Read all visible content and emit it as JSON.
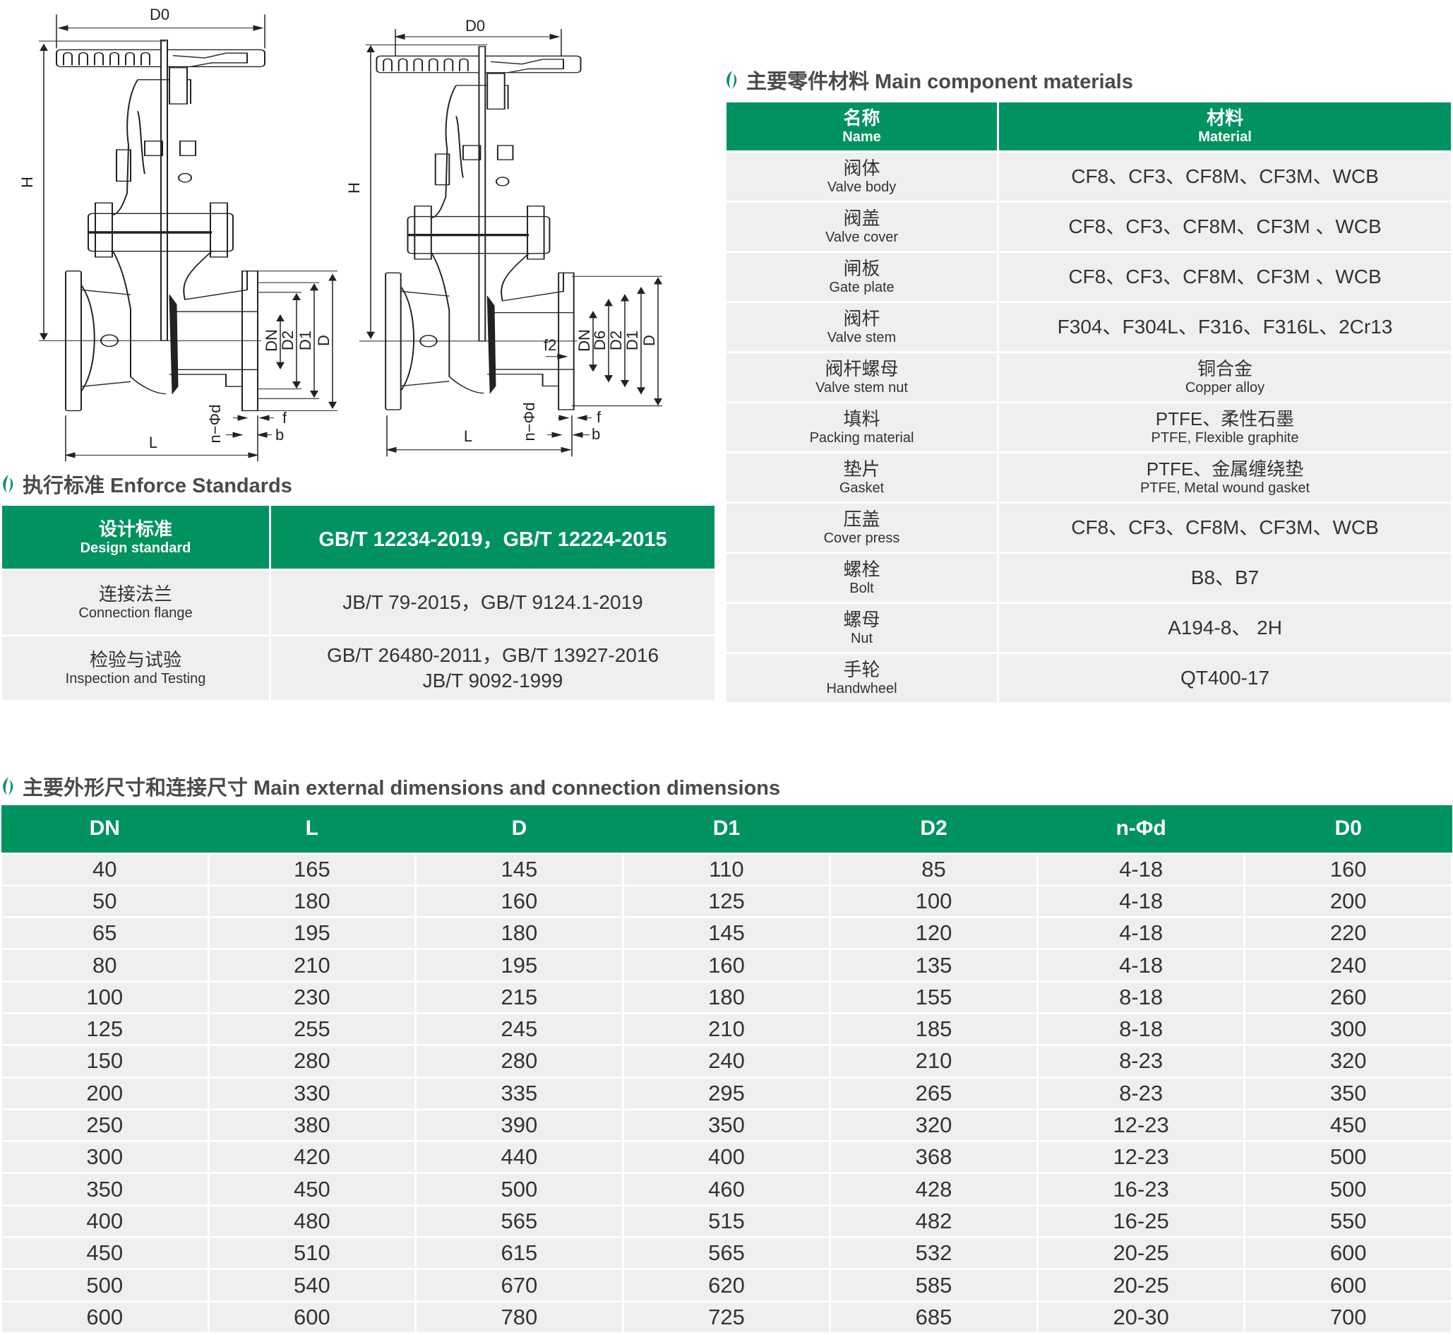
{
  "drawings": {
    "left": {
      "labels": {
        "D0": "D0",
        "H": "H",
        "L": "L",
        "DN": "DN",
        "D2": "D2",
        "D1": "D1",
        "D": "D",
        "f": "f",
        "b": "b",
        "nd": "n−Φd"
      }
    },
    "right": {
      "labels": {
        "D0": "D0",
        "H": "H",
        "L": "L",
        "DN": "DN",
        "D6": "D6",
        "D2": "D2",
        "D1": "D1",
        "D": "D",
        "f": "f",
        "b": "b",
        "f2": "f2",
        "nd": "n−Φd"
      }
    }
  },
  "colors": {
    "accent": "#00935f",
    "row_bg": "#efefef",
    "heading_text": "#4a4a4a"
  },
  "standards": {
    "title": "执行标准 Enforce Standards",
    "header": {
      "cn": "设计标准",
      "en": "Design standard",
      "value": "GB/T 12234-2019，GB/T 12224-2015"
    },
    "rows": [
      {
        "cn": "连接法兰",
        "en": "Connection flange",
        "value": [
          "JB/T 79-2015，GB/T 9124.1-2019"
        ]
      },
      {
        "cn": "检验与试验",
        "en": "Inspection and Testing",
        "value": [
          "GB/T 26480-2011，GB/T 13927-2016",
          "JB/T 9092-1999"
        ]
      }
    ]
  },
  "materials": {
    "title": "主要零件材料 Main component materials",
    "header": {
      "name_cn": "名称",
      "name_en": "Name",
      "mat_cn": "材料",
      "mat_en": "Material"
    },
    "rows": [
      {
        "cn": "阀体",
        "en": "Valve body",
        "mat": "CF8、CF3、CF8M、CF3M、WCB"
      },
      {
        "cn": "阀盖",
        "en": "Valve cover",
        "mat": "CF8、CF3、CF8M、CF3M 、WCB"
      },
      {
        "cn": "闸板",
        "en": "Gate plate",
        "mat": "CF8、CF3、CF8M、CF3M 、WCB"
      },
      {
        "cn": "阀杆",
        "en": "Valve stem",
        "mat": "F304、F304L、F316、F316L、2Cr13"
      },
      {
        "cn": "阀杆螺母",
        "en": "Valve stem nut",
        "mat": "铜合金",
        "mat_en": "Copper alloy"
      },
      {
        "cn": "填料",
        "en": "Packing material",
        "mat": "PTFE、柔性石墨",
        "mat_en": "PTFE, Flexible graphite"
      },
      {
        "cn": "垫片",
        "en": "Gasket",
        "mat": "PTFE、金属缠绕垫",
        "mat_en": "PTFE, Metal wound gasket"
      },
      {
        "cn": "压盖",
        "en": "Cover press",
        "mat": "CF8、CF3、CF8M、CF3M、WCB"
      },
      {
        "cn": "螺栓",
        "en": "Bolt",
        "mat": "B8、B7"
      },
      {
        "cn": "螺母",
        "en": "Nut",
        "mat": "A194-8、 2H"
      },
      {
        "cn": "手轮",
        "en": "Handwheel",
        "mat": "QT400-17"
      }
    ]
  },
  "dimensions": {
    "title": "主要外形尺寸和连接尺寸 Main external dimensions and connection dimensions",
    "columns": [
      "DN",
      "L",
      "D",
      "D1",
      "D2",
      "n-Φd",
      "D0"
    ],
    "rows": [
      [
        "40",
        "165",
        "145",
        "110",
        "85",
        "4-18",
        "160"
      ],
      [
        "50",
        "180",
        "160",
        "125",
        "100",
        "4-18",
        "200"
      ],
      [
        "65",
        "195",
        "180",
        "145",
        "120",
        "4-18",
        "220"
      ],
      [
        "80",
        "210",
        "195",
        "160",
        "135",
        "4-18",
        "240"
      ],
      [
        "100",
        "230",
        "215",
        "180",
        "155",
        "8-18",
        "260"
      ],
      [
        "125",
        "255",
        "245",
        "210",
        "185",
        "8-18",
        "300"
      ],
      [
        "150",
        "280",
        "280",
        "240",
        "210",
        "8-23",
        "320"
      ],
      [
        "200",
        "330",
        "335",
        "295",
        "265",
        "8-23",
        "350"
      ],
      [
        "250",
        "380",
        "390",
        "350",
        "320",
        "12-23",
        "450"
      ],
      [
        "300",
        "420",
        "440",
        "400",
        "368",
        "12-23",
        "500"
      ],
      [
        "350",
        "450",
        "500",
        "460",
        "428",
        "16-23",
        "500"
      ],
      [
        "400",
        "480",
        "565",
        "515",
        "482",
        "16-25",
        "550"
      ],
      [
        "450",
        "510",
        "615",
        "565",
        "532",
        "20-25",
        "600"
      ],
      [
        "500",
        "540",
        "670",
        "620",
        "585",
        "20-25",
        "600"
      ],
      [
        "600",
        "600",
        "780",
        "725",
        "685",
        "20-30",
        "700"
      ]
    ]
  }
}
